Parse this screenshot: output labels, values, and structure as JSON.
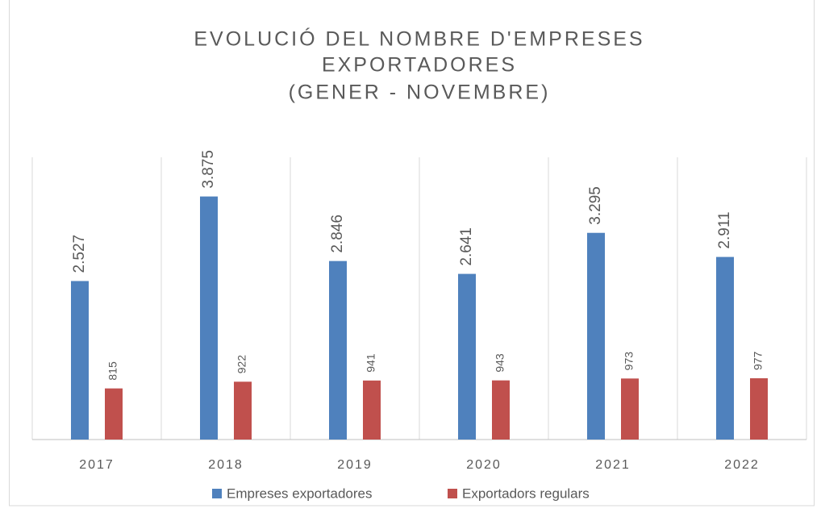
{
  "chart_data": {
    "type": "bar",
    "title": [
      "EVOLUCIÓ DEL NOMBRE D'EMPRESES",
      "EXPORTADORES",
      "(GENER - NOVEMBRE)"
    ],
    "categories": [
      "2017",
      "2018",
      "2019",
      "2020",
      "2021",
      "2022"
    ],
    "series": [
      {
        "name": "Empreses exportadores",
        "color": "#4f81bd",
        "values": [
          2527,
          3875,
          2846,
          2641,
          3295,
          2911
        ],
        "value_labels": [
          "2.527",
          "3.875",
          "2.846",
          "2.641",
          "3.295",
          "2.911"
        ]
      },
      {
        "name": "Exportadors regulars",
        "color": "#c0504d",
        "values": [
          815,
          922,
          941,
          943,
          973,
          977
        ]
      }
    ],
    "ylim": [
      0,
      4500
    ],
    "legend": "bottom"
  }
}
